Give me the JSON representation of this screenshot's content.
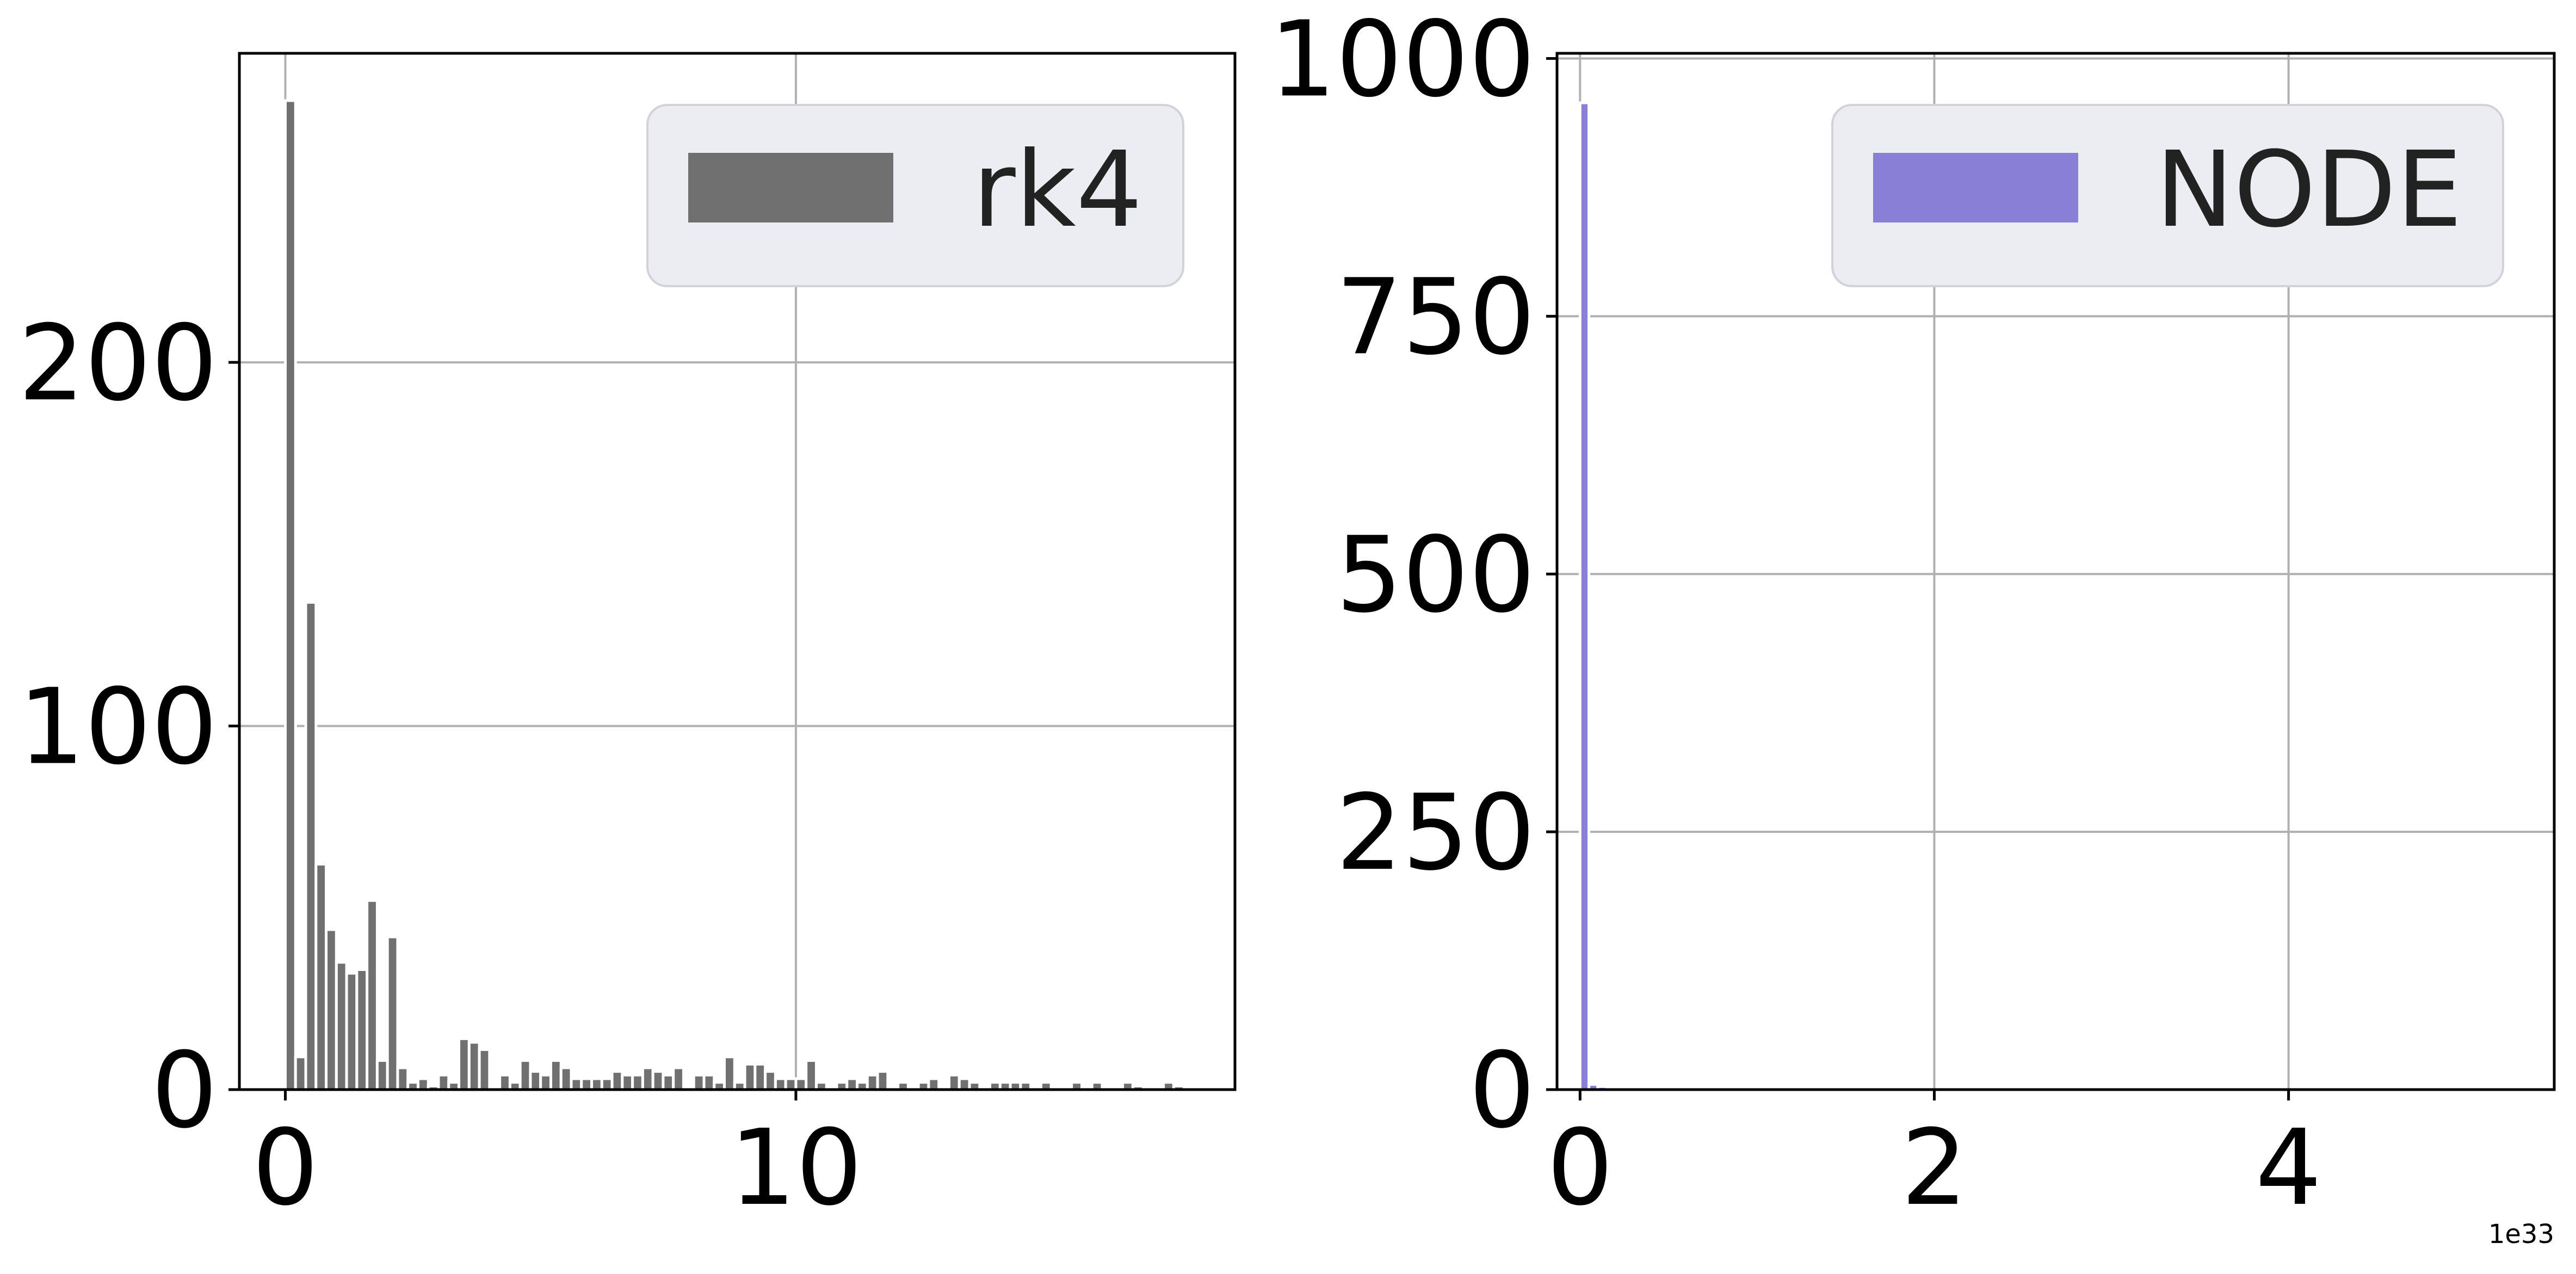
{
  "chart_data": [
    {
      "type": "bar",
      "legend": {
        "label": "rk4",
        "placement": "upper right"
      },
      "color": "#707070",
      "grid": true,
      "xlim": [
        -0.9,
        18.6
      ],
      "ylim": [
        0,
        285
      ],
      "x_ticks": [
        {
          "value": 0,
          "label": "0"
        },
        {
          "value": 10,
          "label": "10"
        }
      ],
      "y_ticks": [
        {
          "value": 0,
          "label": "0"
        },
        {
          "value": 100,
          "label": "100"
        },
        {
          "value": 200,
          "label": "200"
        }
      ],
      "bin_width": 0.2,
      "bin_starts": [
        0.0,
        0.2,
        0.4,
        0.6,
        0.8,
        1.0,
        1.2,
        1.4,
        1.6,
        1.8,
        2.0,
        2.2,
        2.4,
        2.6,
        2.8,
        3.0,
        3.2,
        3.4,
        3.6,
        3.8,
        4.0,
        4.2,
        4.4,
        4.6,
        4.8,
        5.0,
        5.2,
        5.4,
        5.6,
        5.8,
        6.0,
        6.2,
        6.4,
        6.6,
        6.8,
        7.0,
        7.2,
        7.4,
        7.6,
        7.8,
        8.0,
        8.2,
        8.4,
        8.6,
        8.8,
        9.0,
        9.2,
        9.4,
        9.6,
        9.8,
        10.0,
        10.2,
        10.4,
        10.6,
        10.8,
        11.0,
        11.2,
        11.4,
        11.6,
        11.8,
        12.0,
        12.2,
        12.4,
        12.6,
        12.8,
        13.0,
        13.2,
        13.4,
        13.6,
        13.8,
        14.0,
        14.2,
        14.4,
        14.6,
        14.8,
        15.0,
        15.2,
        15.4,
        15.6,
        15.8,
        16.0,
        16.2,
        16.4,
        16.6,
        16.8,
        17.0,
        17.2,
        17.4,
        17.6
      ],
      "values": [
        272,
        9,
        134,
        62,
        44,
        35,
        32,
        33,
        52,
        8,
        42,
        6,
        2,
        3,
        1,
        4,
        2,
        14,
        13,
        11,
        0,
        4,
        2,
        8,
        5,
        4,
        8,
        6,
        3,
        3,
        3,
        3,
        5,
        4,
        4,
        6,
        5,
        4,
        6,
        0,
        4,
        4,
        2,
        9,
        2,
        7,
        7,
        5,
        3,
        3,
        3,
        8,
        2,
        0,
        2,
        3,
        2,
        4,
        5,
        0,
        2,
        0,
        2,
        3,
        0,
        4,
        3,
        2,
        0,
        2,
        2,
        2,
        2,
        0,
        2,
        0,
        0,
        2,
        0,
        2,
        0,
        0,
        2,
        1,
        0,
        0,
        2,
        1,
        0
      ]
    },
    {
      "type": "bar",
      "legend": {
        "label": "NODE",
        "placement": "upper right"
      },
      "color": "#8a7fd6",
      "grid": true,
      "xlim": [
        -0.13,
        5.5
      ],
      "ylim": [
        0,
        1005
      ],
      "x_ticks": [
        {
          "value": 0,
          "label": "0"
        },
        {
          "value": 2,
          "label": "2"
        },
        {
          "value": 4,
          "label": "4"
        }
      ],
      "y_ticks": [
        {
          "value": 0,
          "label": "0"
        },
        {
          "value": 250,
          "label": "250"
        },
        {
          "value": 500,
          "label": "500"
        },
        {
          "value": 750,
          "label": "750"
        },
        {
          "value": 1000,
          "label": "1000"
        }
      ],
      "x_offset_label": "1e33",
      "bin_width": 0.05,
      "bin_starts": [
        0.0,
        0.05,
        0.1
      ],
      "values": [
        957,
        5,
        3
      ]
    }
  ]
}
